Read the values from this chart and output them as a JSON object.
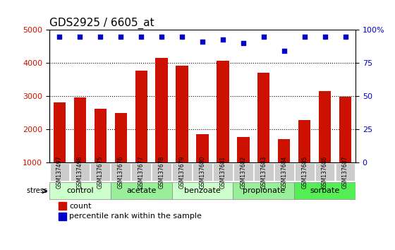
{
  "title": "GDS2925 / 6605_at",
  "samples": [
    "GSM137497",
    "GSM137498",
    "GSM137675",
    "GSM137676",
    "GSM137677",
    "GSM137678",
    "GSM137679",
    "GSM137680",
    "GSM137681",
    "GSM137682",
    "GSM137683",
    "GSM137684",
    "GSM137685",
    "GSM137686",
    "GSM137687"
  ],
  "counts": [
    2800,
    2950,
    2620,
    2480,
    3780,
    4150,
    3920,
    1840,
    4060,
    1770,
    3700,
    1690,
    2280,
    3160,
    2980
  ],
  "percentiles": [
    99,
    99,
    99,
    99,
    99,
    99,
    99,
    96,
    97,
    95,
    99,
    90,
    99,
    99,
    99
  ],
  "bar_color": "#cc1100",
  "dot_color": "#0000cc",
  "ylim_left": [
    1000,
    5000
  ],
  "ylim_right": [
    0,
    100
  ],
  "yticks_left": [
    1000,
    2000,
    3000,
    4000,
    5000
  ],
  "yticks_right": [
    0,
    25,
    50,
    75,
    100
  ],
  "groups": [
    {
      "label": "control",
      "start": 0,
      "end": 2,
      "color": "#ccffcc"
    },
    {
      "label": "acetate",
      "start": 3,
      "end": 5,
      "color": "#99ff99"
    },
    {
      "label": "benzoate",
      "start": 6,
      "end": 8,
      "color": "#ccffcc"
    },
    {
      "label": "propionate",
      "start": 9,
      "end": 11,
      "color": "#99ff99"
    },
    {
      "label": "sorbate",
      "start": 12,
      "end": 14,
      "color": "#66ff66"
    }
  ],
  "stress_label": "stress",
  "legend_count_label": "count",
  "legend_pct_label": "percentile rank within the sample",
  "background_color": "#ffffff",
  "grid_color": "#000000",
  "tick_area_color": "#cccccc",
  "title_fontsize": 11,
  "axis_fontsize": 9,
  "bar_width": 0.6
}
